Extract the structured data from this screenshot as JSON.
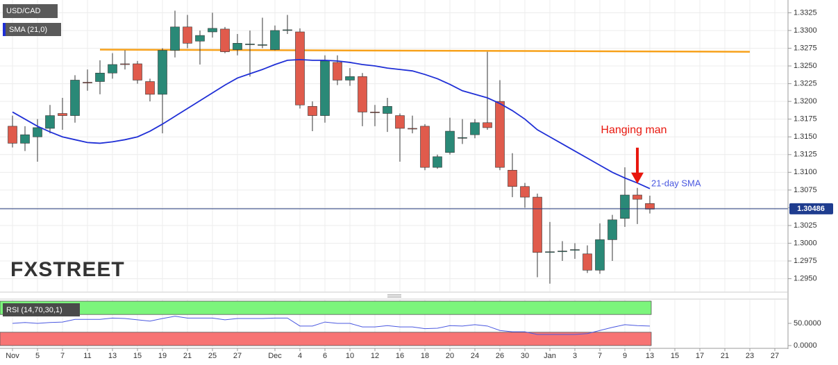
{
  "chart_data": [
    {
      "type": "candlestick",
      "title": "USD/CAD",
      "watermark": "FXSTREET",
      "categories": [
        "Nov",
        null,
        "5",
        null,
        "7",
        null,
        "11",
        null,
        "13",
        null,
        "15",
        null,
        "19",
        null,
        "21",
        null,
        "25",
        null,
        "27",
        null,
        null,
        "Dec",
        null,
        "4",
        null,
        "6",
        null,
        "10",
        null,
        "12",
        null,
        "16",
        null,
        "18",
        null,
        "20",
        null,
        "24",
        null,
        "26",
        null,
        "30",
        null,
        "Jan",
        null,
        "3",
        null,
        "7",
        null,
        "9",
        null,
        "13",
        null,
        "15",
        null,
        "17",
        null,
        "21",
        null,
        "23",
        null,
        "27"
      ],
      "series": [
        {
          "name": "USD/CAD",
          "up_color": "#2a8977",
          "down_color": "#e05b4c",
          "open": [
            1.3165,
            1.3141,
            1.315,
            1.3162,
            1.3183,
            1.318,
            1.3227,
            1.3228,
            1.324,
            1.3253,
            1.3253,
            1.3228,
            1.321,
            1.3272,
            1.3305,
            1.3285,
            1.3298,
            1.3302,
            1.3273,
            1.328,
            1.328,
            1.3273,
            1.33,
            1.3298,
            1.3193,
            1.318,
            1.3255,
            1.323,
            1.3235,
            1.3185,
            1.3183,
            1.318,
            1.3162,
            1.3165,
            1.3107,
            1.3128,
            1.3148,
            1.3153,
            1.317,
            1.32,
            1.3103,
            1.308,
            1.3065,
            1.2987,
            1.2988,
            1.299,
            1.2985,
            1.2962,
            1.3005,
            1.3035,
            1.3068,
            1.3056,
            null,
            null,
            null,
            null,
            null,
            null,
            null,
            null,
            null,
            null
          ],
          "high": [
            1.318,
            1.3165,
            1.3175,
            1.3195,
            1.3205,
            1.3237,
            1.3245,
            1.3258,
            1.3268,
            1.3272,
            1.3257,
            1.3232,
            1.3275,
            1.3328,
            1.3322,
            1.33,
            1.3325,
            1.3305,
            1.3295,
            1.33,
            1.3318,
            1.3307,
            1.3322,
            1.3303,
            1.32,
            1.3265,
            1.3265,
            1.3247,
            1.324,
            1.3195,
            1.3205,
            1.3183,
            1.318,
            1.3168,
            1.3125,
            1.3177,
            1.3175,
            1.3175,
            1.327,
            1.323,
            1.3127,
            1.3085,
            1.307,
            1.303,
            1.3003,
            1.3,
            1.2997,
            1.3028,
            1.304,
            1.3107,
            1.3078,
            1.3067,
            null,
            null,
            null,
            null,
            null,
            null,
            null,
            null,
            null,
            null
          ],
          "low": [
            1.3135,
            1.313,
            1.3115,
            1.3155,
            1.316,
            1.317,
            1.3215,
            1.321,
            1.3232,
            1.3245,
            1.3225,
            1.32,
            1.3155,
            1.3262,
            1.3275,
            1.3252,
            1.329,
            1.3268,
            1.3265,
            1.3235,
            1.3275,
            1.3272,
            1.3295,
            1.319,
            1.3158,
            1.317,
            1.3223,
            1.3222,
            1.3165,
            1.3165,
            1.3157,
            1.3115,
            1.3155,
            1.3103,
            1.3105,
            1.3125,
            1.314,
            1.3148,
            1.316,
            1.3103,
            1.3065,
            1.305,
            1.2952,
            1.2943,
            1.2975,
            1.2978,
            1.2958,
            1.2957,
            1.2975,
            1.3023,
            1.3027,
            1.3042,
            null,
            null,
            null,
            null,
            null,
            null,
            null,
            null,
            null,
            null
          ],
          "close": [
            1.3141,
            1.3153,
            1.3163,
            1.318,
            1.318,
            1.323,
            1.3226,
            1.324,
            1.3252,
            1.3252,
            1.323,
            1.321,
            1.3272,
            1.3305,
            1.3282,
            1.3293,
            1.3303,
            1.327,
            1.3282,
            1.3281,
            1.328,
            1.33,
            1.3301,
            1.3195,
            1.318,
            1.3257,
            1.323,
            1.3235,
            1.3185,
            1.3184,
            1.3193,
            1.3162,
            1.3161,
            1.3107,
            1.3122,
            1.3158,
            1.3149,
            1.317,
            1.3163,
            1.3107,
            1.308,
            1.3065,
            1.2987,
            1.2988,
            1.2989,
            1.2991,
            1.2962,
            1.3005,
            1.3033,
            1.3068,
            1.3062,
            1.3048,
            null,
            null,
            null,
            null,
            null,
            null,
            null,
            null,
            null,
            null
          ]
        },
        {
          "name": "SMA (21,0)",
          "color": "#1f2fd6",
          "values": [
            1.3185,
            1.3175,
            1.3165,
            1.3157,
            1.315,
            1.3146,
            1.3142,
            1.3141,
            1.3143,
            1.3146,
            1.315,
            1.3158,
            1.3168,
            1.3179,
            1.319,
            1.3201,
            1.3212,
            1.3223,
            1.3233,
            1.3239,
            1.3245,
            1.3252,
            1.3258,
            1.3259,
            1.3258,
            1.3258,
            1.3257,
            1.3255,
            1.3252,
            1.325,
            1.3247,
            1.3245,
            1.3243,
            1.3238,
            1.3232,
            1.3224,
            1.3215,
            1.321,
            1.3205,
            1.3197,
            1.3187,
            1.3175,
            1.316,
            1.315,
            1.314,
            1.313,
            1.312,
            1.311,
            1.31,
            1.3092,
            1.3085,
            1.3077,
            null,
            null,
            null,
            null,
            null,
            null,
            null,
            null,
            null,
            null
          ]
        }
      ],
      "trendline": {
        "x": [
          7,
          59
        ],
        "values": [
          1.3273,
          1.327
        ],
        "color": "#f7a11a"
      },
      "last_price": 1.30486,
      "annotations": [
        {
          "text": "Hanging man",
          "color": "#e8170e"
        },
        {
          "text": "21-day SMA",
          "color": "#4a58e0"
        }
      ],
      "ylim": [
        1.2932,
        1.3343
      ],
      "yticks": [
        {
          "value": 1.295,
          "label": "1.2950"
        },
        1.2975,
        {
          "value": 1.3,
          "label": "1.3000"
        },
        1.3025,
        {
          "value": 1.305,
          "label": "1.3050"
        },
        1.3075,
        {
          "value": 1.31,
          "label": "1.3100"
        },
        1.3125,
        {
          "value": 1.315,
          "label": "1.3150"
        },
        1.3175,
        {
          "value": 1.32,
          "label": "1.3200"
        },
        1.3225,
        {
          "value": 1.325,
          "label": "1.3250"
        },
        1.3275,
        {
          "value": 1.33,
          "label": "1.3300"
        },
        1.3325
      ],
      "grid": true
    },
    {
      "type": "line",
      "title": "RSI (14,70,30,1)",
      "color": "#4a58e0",
      "values": [
        50,
        52,
        50,
        52,
        53,
        59,
        59,
        59,
        62,
        61,
        58,
        55,
        61,
        66,
        62,
        62,
        62,
        58,
        61,
        61,
        61,
        62,
        62,
        44,
        44,
        53,
        50,
        50,
        42,
        42,
        45,
        42,
        42,
        38,
        39,
        45,
        44,
        47,
        44,
        34,
        31,
        31,
        25,
        25,
        25,
        25,
        27,
        34,
        41,
        47,
        45,
        44,
        null,
        null,
        null,
        null,
        null,
        null,
        null,
        null,
        null,
        null
      ],
      "bands": [
        {
          "from": 70,
          "to": 100,
          "color": "#7cf57c"
        },
        {
          "from": 0,
          "to": 30,
          "color": "#f77474"
        }
      ],
      "ylim": [
        0,
        100
      ],
      "yticks": [
        {
          "value": 50,
          "label": "50.0000"
        },
        {
          "value": 0,
          "label": "0.0000"
        }
      ]
    }
  ]
}
